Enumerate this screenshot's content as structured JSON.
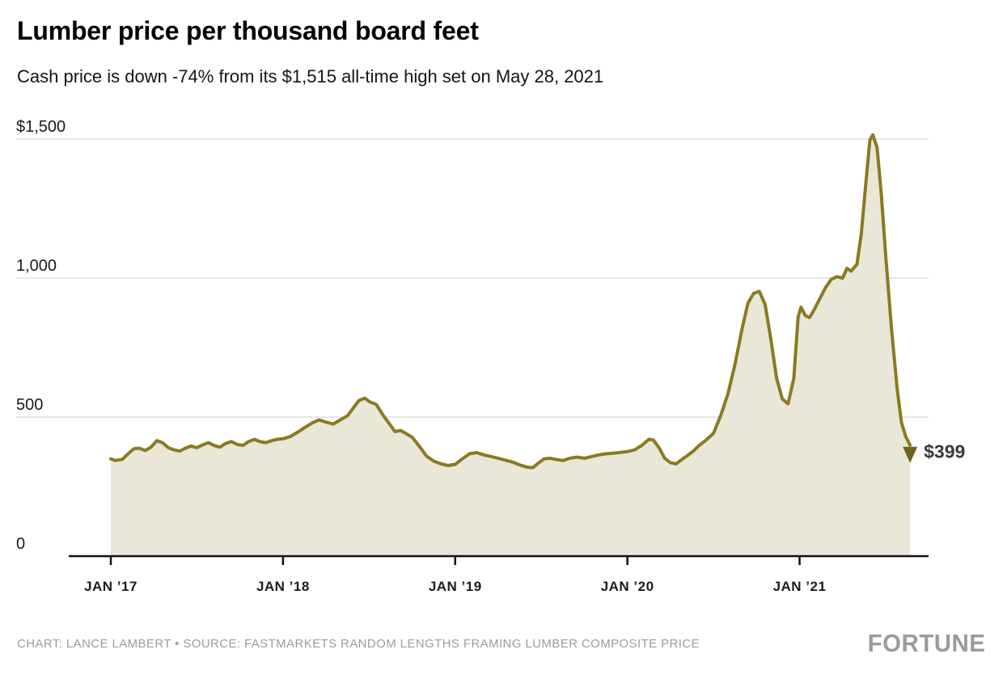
{
  "header": {
    "title": "Lumber price per thousand board feet",
    "subtitle": "Cash price is down -74% from its $1,515 all-time high set on May 28, 2021"
  },
  "chart_data": {
    "type": "area",
    "title": "Lumber price per thousand board feet",
    "xlabel": "",
    "ylabel": "",
    "x_unit": "months since Jan 2017",
    "xlim": [
      0,
      55.7
    ],
    "ylim": [
      0,
      1550
    ],
    "grid": "horizontal",
    "legend": "none",
    "y_ticks": [
      {
        "value": 1500,
        "label": "$1,500"
      },
      {
        "value": 1000,
        "label": "1,000"
      },
      {
        "value": 500,
        "label": "500"
      },
      {
        "value": 0,
        "label": "0"
      }
    ],
    "x_ticks": [
      {
        "month": 0,
        "label": "JAN ’17"
      },
      {
        "month": 12,
        "label": "JAN ’18"
      },
      {
        "month": 24,
        "label": "JAN ’19"
      },
      {
        "month": 36,
        "label": "JAN ’20"
      },
      {
        "month": 48,
        "label": "JAN ’21"
      }
    ],
    "points": [
      [
        0,
        350
      ],
      [
        0.3,
        344
      ],
      [
        0.8,
        348
      ],
      [
        1.2,
        368
      ],
      [
        1.6,
        386
      ],
      [
        2,
        388
      ],
      [
        2.4,
        380
      ],
      [
        2.8,
        392
      ],
      [
        3.2,
        415
      ],
      [
        3.6,
        408
      ],
      [
        4,
        390
      ],
      [
        4.4,
        382
      ],
      [
        4.8,
        378
      ],
      [
        5.2,
        388
      ],
      [
        5.6,
        396
      ],
      [
        6,
        390
      ],
      [
        6.4,
        400
      ],
      [
        6.8,
        408
      ],
      [
        7.2,
        398
      ],
      [
        7.6,
        392
      ],
      [
        8,
        405
      ],
      [
        8.4,
        412
      ],
      [
        8.8,
        402
      ],
      [
        9.2,
        398
      ],
      [
        9.6,
        412
      ],
      [
        10,
        420
      ],
      [
        10.4,
        412
      ],
      [
        10.8,
        408
      ],
      [
        11.2,
        415
      ],
      [
        11.6,
        420
      ],
      [
        12,
        422
      ],
      [
        12.5,
        430
      ],
      [
        13,
        445
      ],
      [
        13.5,
        462
      ],
      [
        14,
        478
      ],
      [
        14.5,
        490
      ],
      [
        15,
        482
      ],
      [
        15.5,
        475
      ],
      [
        16,
        490
      ],
      [
        16.5,
        505
      ],
      [
        17,
        540
      ],
      [
        17.3,
        560
      ],
      [
        17.7,
        568
      ],
      [
        18,
        556
      ],
      [
        18.5,
        545
      ],
      [
        19,
        505
      ],
      [
        19.5,
        470
      ],
      [
        19.8,
        448
      ],
      [
        20.2,
        452
      ],
      [
        20.6,
        440
      ],
      [
        21,
        428
      ],
      [
        21.5,
        395
      ],
      [
        22,
        360
      ],
      [
        22.5,
        342
      ],
      [
        23,
        332
      ],
      [
        23.5,
        326
      ],
      [
        24,
        330
      ],
      [
        24.5,
        350
      ],
      [
        25,
        368
      ],
      [
        25.5,
        372
      ],
      [
        26,
        364
      ],
      [
        26.5,
        358
      ],
      [
        27,
        352
      ],
      [
        27.5,
        345
      ],
      [
        28,
        338
      ],
      [
        28.5,
        328
      ],
      [
        29,
        320
      ],
      [
        29.4,
        318
      ],
      [
        29.8,
        335
      ],
      [
        30.2,
        350
      ],
      [
        30.6,
        352
      ],
      [
        31,
        348
      ],
      [
        31.5,
        344
      ],
      [
        32,
        352
      ],
      [
        32.5,
        356
      ],
      [
        33,
        352
      ],
      [
        33.5,
        358
      ],
      [
        34,
        364
      ],
      [
        34.5,
        368
      ],
      [
        35,
        370
      ],
      [
        35.5,
        373
      ],
      [
        36,
        376
      ],
      [
        36.5,
        382
      ],
      [
        37,
        398
      ],
      [
        37.5,
        420
      ],
      [
        37.8,
        418
      ],
      [
        38.2,
        390
      ],
      [
        38.6,
        352
      ],
      [
        39,
        336
      ],
      [
        39.4,
        332
      ],
      [
        39.8,
        348
      ],
      [
        40.2,
        362
      ],
      [
        40.6,
        378
      ],
      [
        41,
        398
      ],
      [
        41.5,
        418
      ],
      [
        42,
        442
      ],
      [
        42.5,
        505
      ],
      [
        43,
        582
      ],
      [
        43.5,
        690
      ],
      [
        44,
        820
      ],
      [
        44.4,
        910
      ],
      [
        44.8,
        945
      ],
      [
        45.2,
        952
      ],
      [
        45.6,
        905
      ],
      [
        46,
        780
      ],
      [
        46.4,
        640
      ],
      [
        46.8,
        565
      ],
      [
        47.2,
        548
      ],
      [
        47.6,
        640
      ],
      [
        47.9,
        860
      ],
      [
        48.1,
        895
      ],
      [
        48.4,
        865
      ],
      [
        48.7,
        858
      ],
      [
        49,
        885
      ],
      [
        49.4,
        925
      ],
      [
        49.8,
        965
      ],
      [
        50.2,
        995
      ],
      [
        50.6,
        1005
      ],
      [
        51,
        1000
      ],
      [
        51.3,
        1035
      ],
      [
        51.6,
        1025
      ],
      [
        52,
        1050
      ],
      [
        52.3,
        1160
      ],
      [
        52.6,
        1330
      ],
      [
        52.9,
        1495
      ],
      [
        53.1,
        1515
      ],
      [
        53.4,
        1470
      ],
      [
        53.7,
        1300
      ],
      [
        54,
        1080
      ],
      [
        54.4,
        820
      ],
      [
        54.8,
        600
      ],
      [
        55.1,
        480
      ],
      [
        55.4,
        430
      ],
      [
        55.7,
        399
      ]
    ],
    "annotation": {
      "label": "$399",
      "value": 399
    },
    "colors": {
      "line": "#8a7a21",
      "fill": "#eae7d8",
      "grid": "#cfcfcf",
      "axis": "#111111",
      "arrow": "#6f611c",
      "annotation_text": "#3a3a3a",
      "tick_label": "#1a1a1a"
    }
  },
  "footer": {
    "credit": "CHART: LANCE LAMBERT • SOURCE: FASTMARKETS RANDOM LENGTHS FRAMING LUMBER COMPOSITE PRICE",
    "brand": "FORTUNE"
  }
}
